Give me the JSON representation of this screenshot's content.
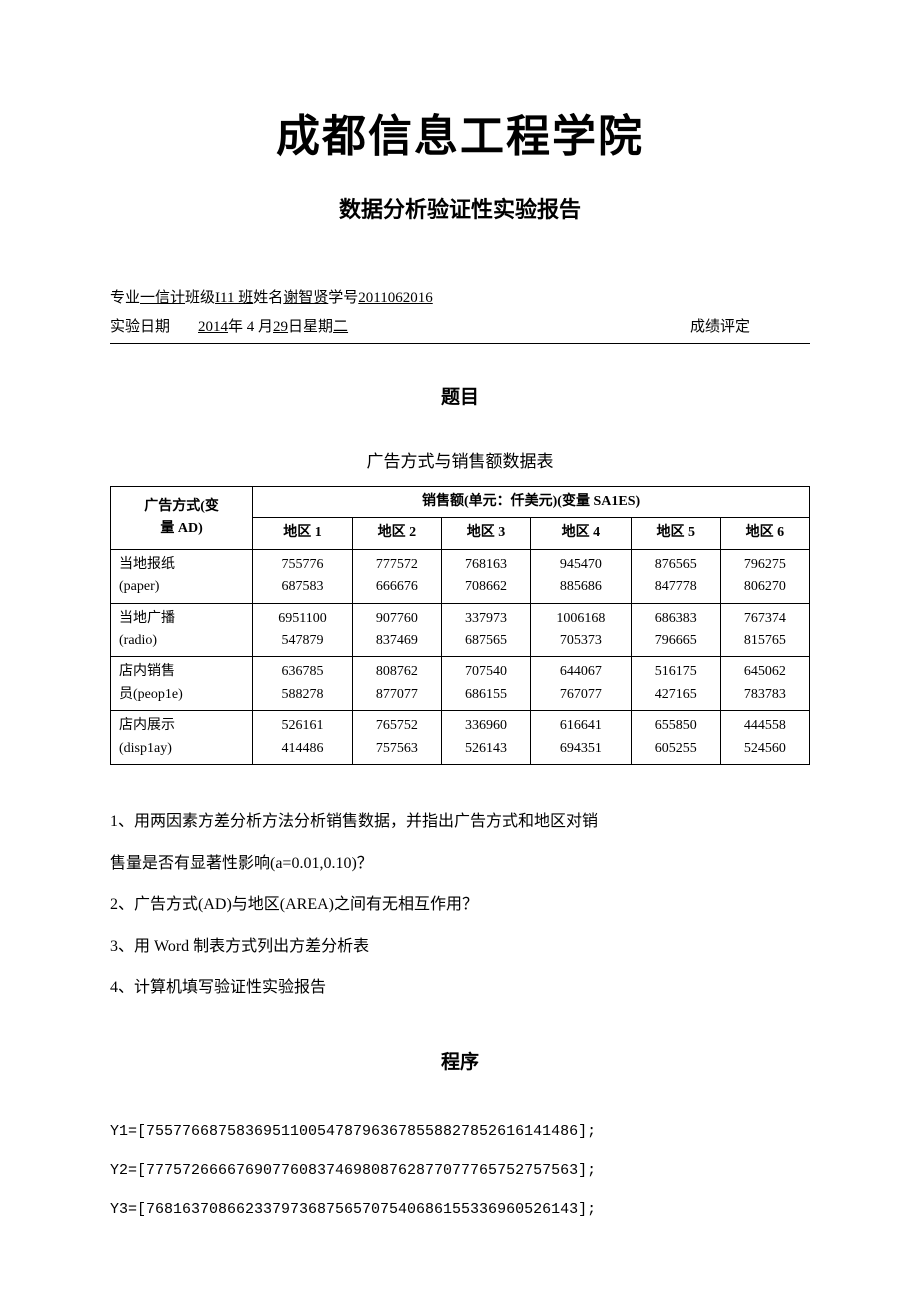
{
  "header": {
    "institution": "成都信息工程学院",
    "reportTitle": "数据分析验证性实验报告"
  },
  "meta": {
    "majorLabel": "专业",
    "major": "一信计",
    "classLabel": "班级",
    "class": "I11 班",
    "nameLabel": "姓名",
    "name": "谢智贤",
    "idLabel": "学号",
    "id": "2011062016",
    "dateLabel": "实验日期",
    "datePrefix": "2014",
    "dateMid1": "年 4 月",
    "dateDay": "29",
    "dateMid2": "日星期",
    "dateWeekday": "二",
    "gradeLabel": "成绩评定"
  },
  "sections": {
    "topic": "题目",
    "program": "程序"
  },
  "table": {
    "caption": "广告方式与销售额数据表",
    "rowHeaderTop": "广告方式(变",
    "rowHeaderBottom": "量 AD)",
    "salesHeader": "销售额(单元：仟美元)(变量 SA1ES)",
    "areas": [
      "地区 1",
      "地区 2",
      "地区 3",
      "地区 4",
      "地区 5",
      "地区 6"
    ],
    "rows": [
      {
        "labelTop": "当地报纸",
        "labelBottom": "(paper)",
        "cellsTop": [
          "755776",
          "777572",
          "768163",
          "945470",
          "876565",
          "796275"
        ],
        "cellsBottom": [
          "687583",
          "666676",
          "708662",
          "885686",
          "847778",
          "806270"
        ]
      },
      {
        "labelTop": "当地广播",
        "labelBottom": "(radio)",
        "cellsTop": [
          "6951100",
          "907760",
          "337973",
          "1006168",
          "686383",
          "767374"
        ],
        "cellsBottom": [
          "547879",
          "837469",
          "687565",
          "705373",
          "796665",
          "815765"
        ]
      },
      {
        "labelTop": "店内销售",
        "labelBottom": "员(peop1e)",
        "cellsTop": [
          "636785",
          "808762",
          "707540",
          "644067",
          "516175",
          "645062"
        ],
        "cellsBottom": [
          "588278",
          "877077",
          "686155",
          "767077",
          "427165",
          "783783"
        ]
      },
      {
        "labelTop": "店内展示",
        "labelBottom": "(disp1ay)",
        "cellsTop": [
          "526161",
          "765752",
          "336960",
          "616641",
          "655850",
          "444558"
        ],
        "cellsBottom": [
          "414486",
          "757563",
          "526143",
          "694351",
          "605255",
          "524560"
        ]
      }
    ]
  },
  "questions": {
    "q1a": "1、用两因素方差分析方法分析销售数据，并指出广告方式和地区对销",
    "q1b": "售量是否有显著性影响(a=0.01,0.10)？",
    "q2": "2、广告方式(AD)与地区(AREA)之间有无相互作用？",
    "q3": "3、用 Word 制表方式列出方差分析表",
    "q4": "4、计算机填写验证性实验报告"
  },
  "code": {
    "y1": "Y1=[755776687583695110054787963678558827852616141486];",
    "y2": "Y2=[777572666676907760837469808762877077765752757563];",
    "y3": "Y3=[768163708662337973687565707540686155336960526143];"
  }
}
